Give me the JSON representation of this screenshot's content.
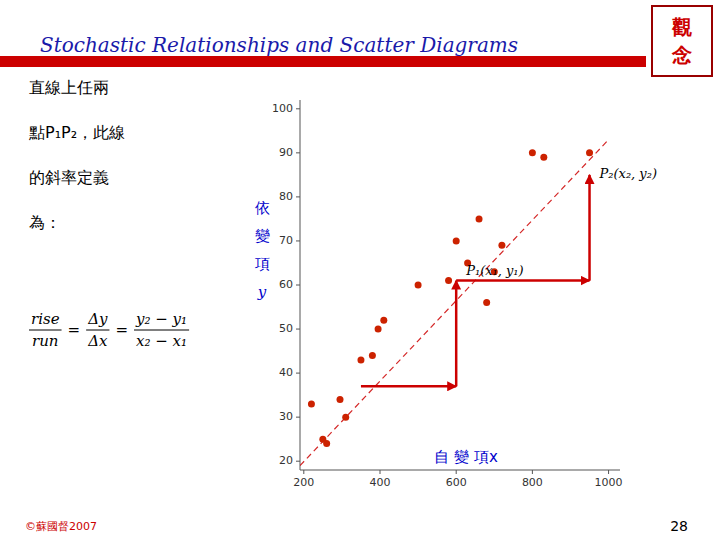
{
  "chart_data": {
    "type": "scatter",
    "title": "Stochastic Relationships and Scatter Diagrams",
    "x": [
      220,
      250,
      260,
      295,
      310,
      350,
      380,
      395,
      410,
      500,
      580,
      600,
      630,
      660,
      680,
      700,
      720,
      800,
      830,
      950
    ],
    "y": [
      33,
      25,
      24,
      34,
      30,
      43,
      44,
      50,
      52,
      60,
      61,
      70,
      65,
      75,
      56,
      63,
      69,
      90,
      89,
      90
    ],
    "color": "#cc2200",
    "marker": "circle",
    "xlim": [
      190,
      1030
    ],
    "ylim": [
      18,
      102
    ],
    "xticks": [
      200,
      400,
      600,
      800,
      1000
    ],
    "yticks": [
      20,
      30,
      40,
      50,
      60,
      70,
      80,
      90,
      100
    ],
    "grid": false,
    "x_label": "自 變 項x",
    "y_label": "依變項y",
    "trend": {
      "x": [
        190,
        1000
      ],
      "y": [
        19,
        93
      ],
      "color": "#cc0000",
      "line_style": "dashed"
    },
    "arrows": [
      {
        "x": [
          350,
          600
        ],
        "y": [
          37,
          37
        ],
        "color": "#cc0000"
      },
      {
        "x": [
          600,
          600
        ],
        "y": [
          37,
          61
        ],
        "color": "#cc0000"
      },
      {
        "x": [
          600,
          950
        ],
        "y": [
          61,
          61
        ],
        "color": "#cc0000"
      },
      {
        "x": [
          950,
          950
        ],
        "y": [
          61,
          85
        ],
        "color": "#cc0000"
      }
    ],
    "points": [
      {
        "label": "P₁(x₁, y₁)",
        "x": 600,
        "y": 61
      },
      {
        "label": "P₂(x₂, y₂)",
        "x": 950,
        "y": 85
      }
    ],
    "concept": [
      "觀",
      "念"
    ],
    "text_lines": [
      "直線上任兩",
      "點P₁P₂，此線",
      "的斜率定義",
      "為："
    ],
    "formula": [
      [
        "rise",
        "run"
      ],
      [
        "Δy",
        "Δx"
      ],
      [
        "y₂ − y₁",
        "x₂ − x₁"
      ]
    ],
    "formula_sign": "=",
    "copyright": "©蘇國督2007",
    "page_number": "28"
  }
}
